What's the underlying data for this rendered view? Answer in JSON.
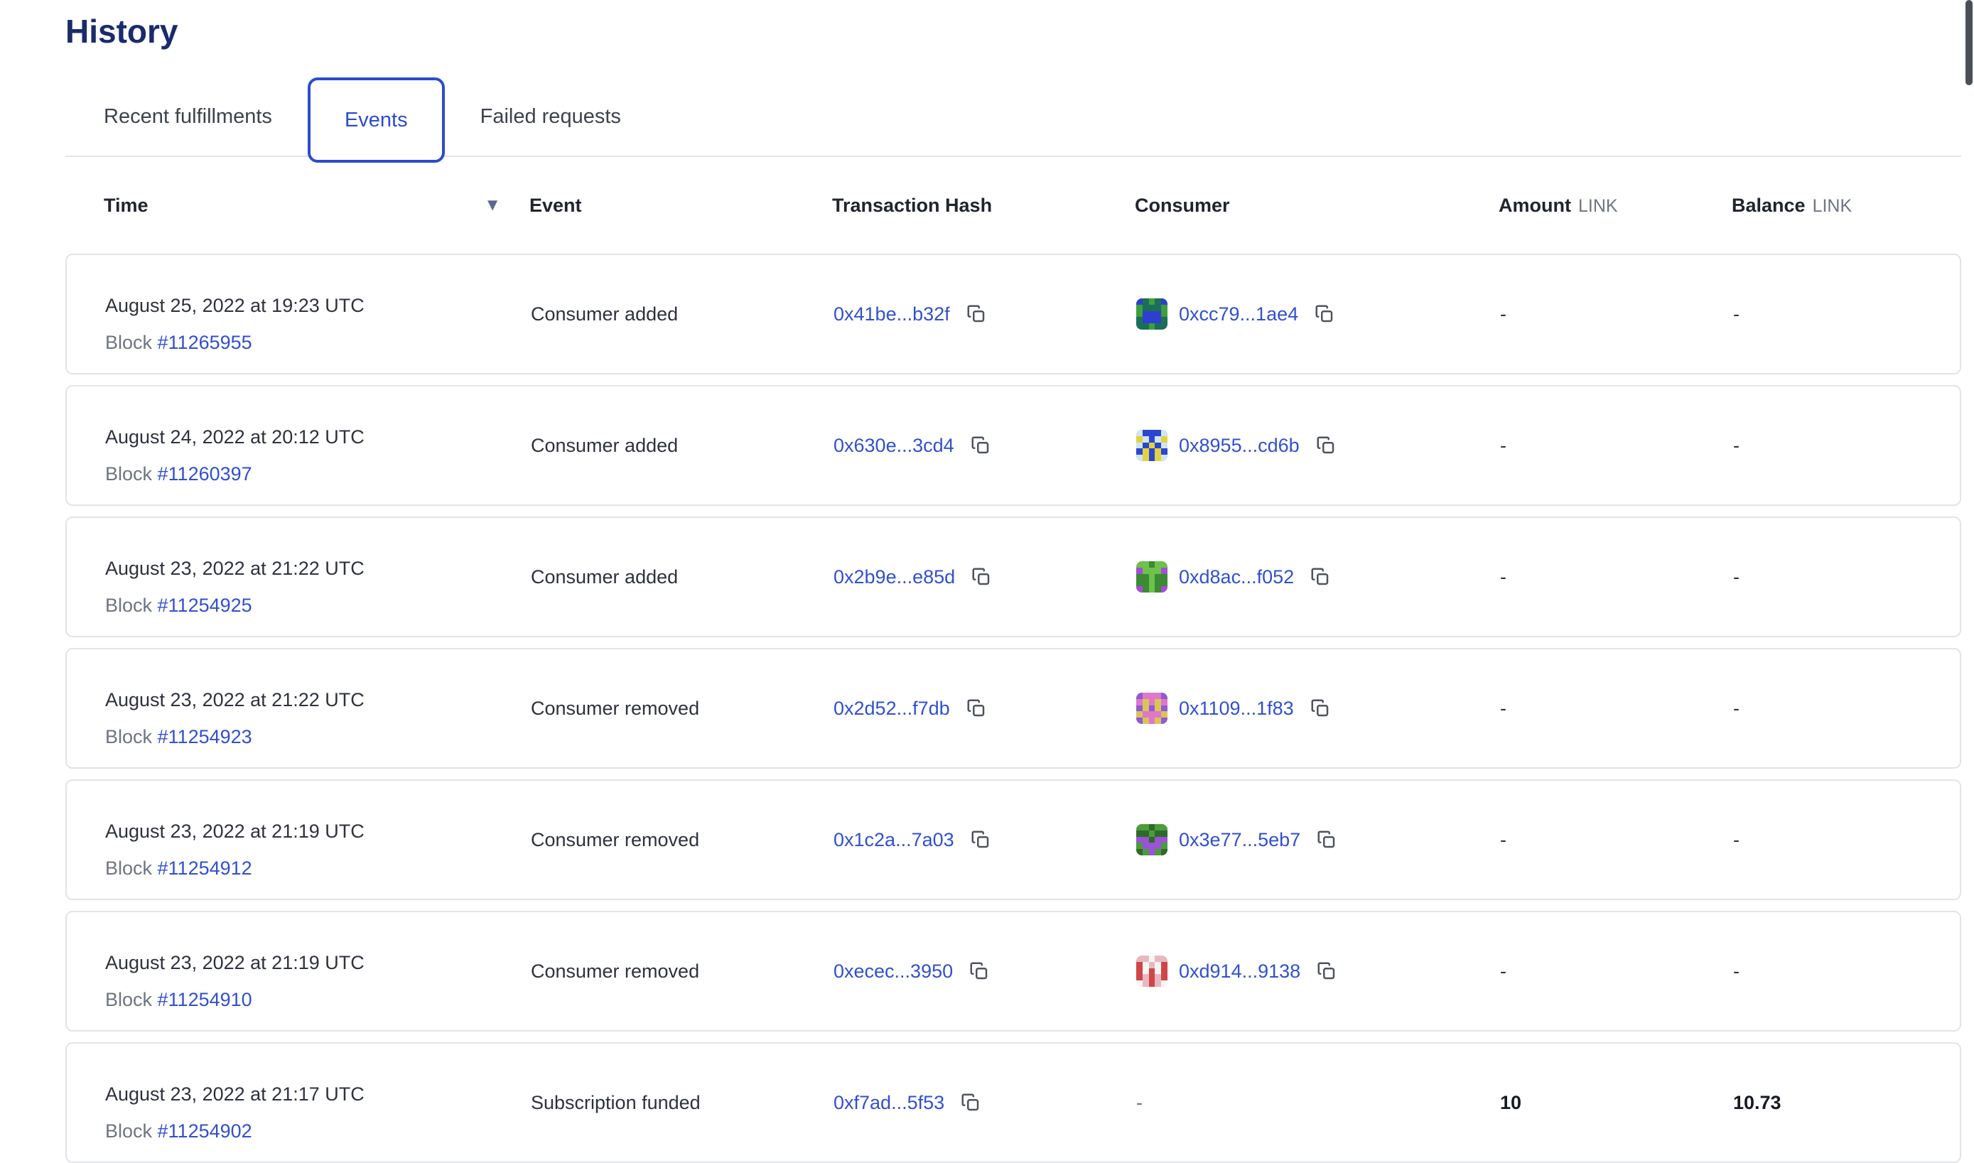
{
  "page": {
    "title": "History"
  },
  "tabs": [
    {
      "label": "Recent fulfillments",
      "active": false
    },
    {
      "label": "Events",
      "active": true
    },
    {
      "label": "Failed requests",
      "active": false
    }
  ],
  "colors": {
    "accent_blue": "#2c4bd0",
    "link_blue": "#3150cf",
    "title_navy": "#1a2b6b",
    "text_dark": "#2e323c",
    "text_muted": "#6e7480",
    "row_border": "#e3e4e8"
  },
  "table": {
    "columns": {
      "time": "Time",
      "event": "Event",
      "tx_hash": "Transaction Hash",
      "consumer": "Consumer",
      "amount": "Amount",
      "amount_unit": "LINK",
      "balance": "Balance",
      "balance_unit": "LINK"
    },
    "labels": {
      "block": "Block"
    },
    "sort": {
      "column": "Time",
      "direction": "desc",
      "icon": "▼"
    },
    "empty_value": "-",
    "rows": [
      {
        "time": "August 25, 2022 at 19:23 UTC",
        "block": "#11265955",
        "event": "Consumer added",
        "tx": "0x41be...b32f",
        "consumer": {
          "hash": "0xcc79...1ae4",
          "avatar": {
            "bg": "#3ca03c",
            "fg": "#2e3fd0",
            "spot": "#1b6e57",
            "seed": 7
          }
        },
        "amount": "-",
        "balance": "-"
      },
      {
        "time": "August 24, 2022 at 20:12 UTC",
        "block": "#11260397",
        "event": "Consumer added",
        "tx": "0x630e...3cd4",
        "consumer": {
          "hash": "0x8955...cd6b",
          "avatar": {
            "bg": "#2b46cf",
            "fg": "#e3d23f",
            "spot": "#cfe6f2",
            "seed": 3
          }
        },
        "amount": "-",
        "balance": "-"
      },
      {
        "time": "August 23, 2022 at 21:22 UTC",
        "block": "#11254925",
        "event": "Consumer added",
        "tx": "0x2b9e...e85d",
        "consumer": {
          "hash": "0xd8ac...f052",
          "avatar": {
            "bg": "#6cc24a",
            "fg": "#3c8a33",
            "spot": "#a24fd0",
            "seed": 5
          }
        },
        "amount": "-",
        "balance": "-"
      },
      {
        "time": "August 23, 2022 at 21:22 UTC",
        "block": "#11254923",
        "event": "Consumer removed",
        "tx": "0x2d52...f7db",
        "consumer": {
          "hash": "0x1109...1f83",
          "avatar": {
            "bg": "#d9c557",
            "fg": "#e077c9",
            "spot": "#8f5ad6",
            "seed": 9
          }
        },
        "amount": "-",
        "balance": "-"
      },
      {
        "time": "August 23, 2022 at 21:19 UTC",
        "block": "#11254912",
        "event": "Consumer removed",
        "tx": "0x1c2a...7a03",
        "consumer": {
          "hash": "0x3e77...5eb7",
          "avatar": {
            "bg": "#9a52d6",
            "fg": "#4a9c3c",
            "spot": "#2e6b2a",
            "seed": 4
          }
        },
        "amount": "-",
        "balance": "-"
      },
      {
        "time": "August 23, 2022 at 21:19 UTC",
        "block": "#11254910",
        "event": "Consumer removed",
        "tx": "0xecec...3950",
        "consumer": {
          "hash": "0xd914...9138",
          "avatar": {
            "bg": "#e8b8c0",
            "fg": "#cf4646",
            "spot": "#f5f5f5",
            "seed": 8
          }
        },
        "amount": "-",
        "balance": "-"
      },
      {
        "time": "August 23, 2022 at 21:17 UTC",
        "block": "#11254902",
        "event": "Subscription funded",
        "tx": "0xf7ad...5f53",
        "consumer": null,
        "amount": "10",
        "balance": "10.73"
      }
    ]
  }
}
